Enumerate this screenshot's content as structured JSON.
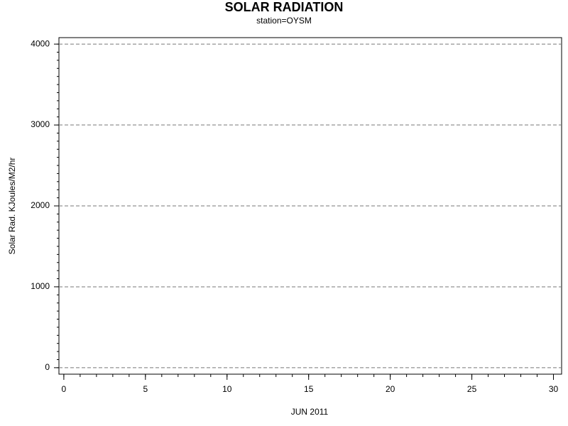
{
  "chart_data": {
    "type": "line",
    "title": "SOLAR RADIATION",
    "subtitle": "station=OYSM",
    "x_label": "JUN 2011",
    "y_label": "Solar Rad. KJoules/M2/hr",
    "xlim": [
      -0.3,
      30.5
    ],
    "xticks": [
      0,
      5,
      10,
      15,
      20,
      25,
      30
    ],
    "x_minor_ticks": [
      0,
      1,
      2,
      3,
      4,
      5,
      6,
      7,
      8,
      9,
      10,
      11,
      12,
      13,
      14,
      15,
      16,
      17,
      18,
      19,
      20,
      21,
      22,
      23,
      24,
      25,
      26,
      27,
      28,
      29,
      30
    ],
    "ylim": [
      -80,
      4080
    ],
    "yticks": [
      0,
      1000,
      2000,
      3000,
      4000
    ],
    "y_minor_ticks": [
      0,
      100,
      200,
      300,
      400,
      500,
      600,
      700,
      800,
      900,
      1000,
      1100,
      1200,
      1300,
      1400,
      1500,
      1600,
      1700,
      1800,
      1900,
      2000,
      2100,
      2200,
      2300,
      2400,
      2500,
      2600,
      2700,
      2800,
      2900,
      3000,
      3100,
      3200,
      3300,
      3400,
      3500,
      3600,
      3700,
      3800,
      3900,
      4000
    ],
    "grid": true
  }
}
